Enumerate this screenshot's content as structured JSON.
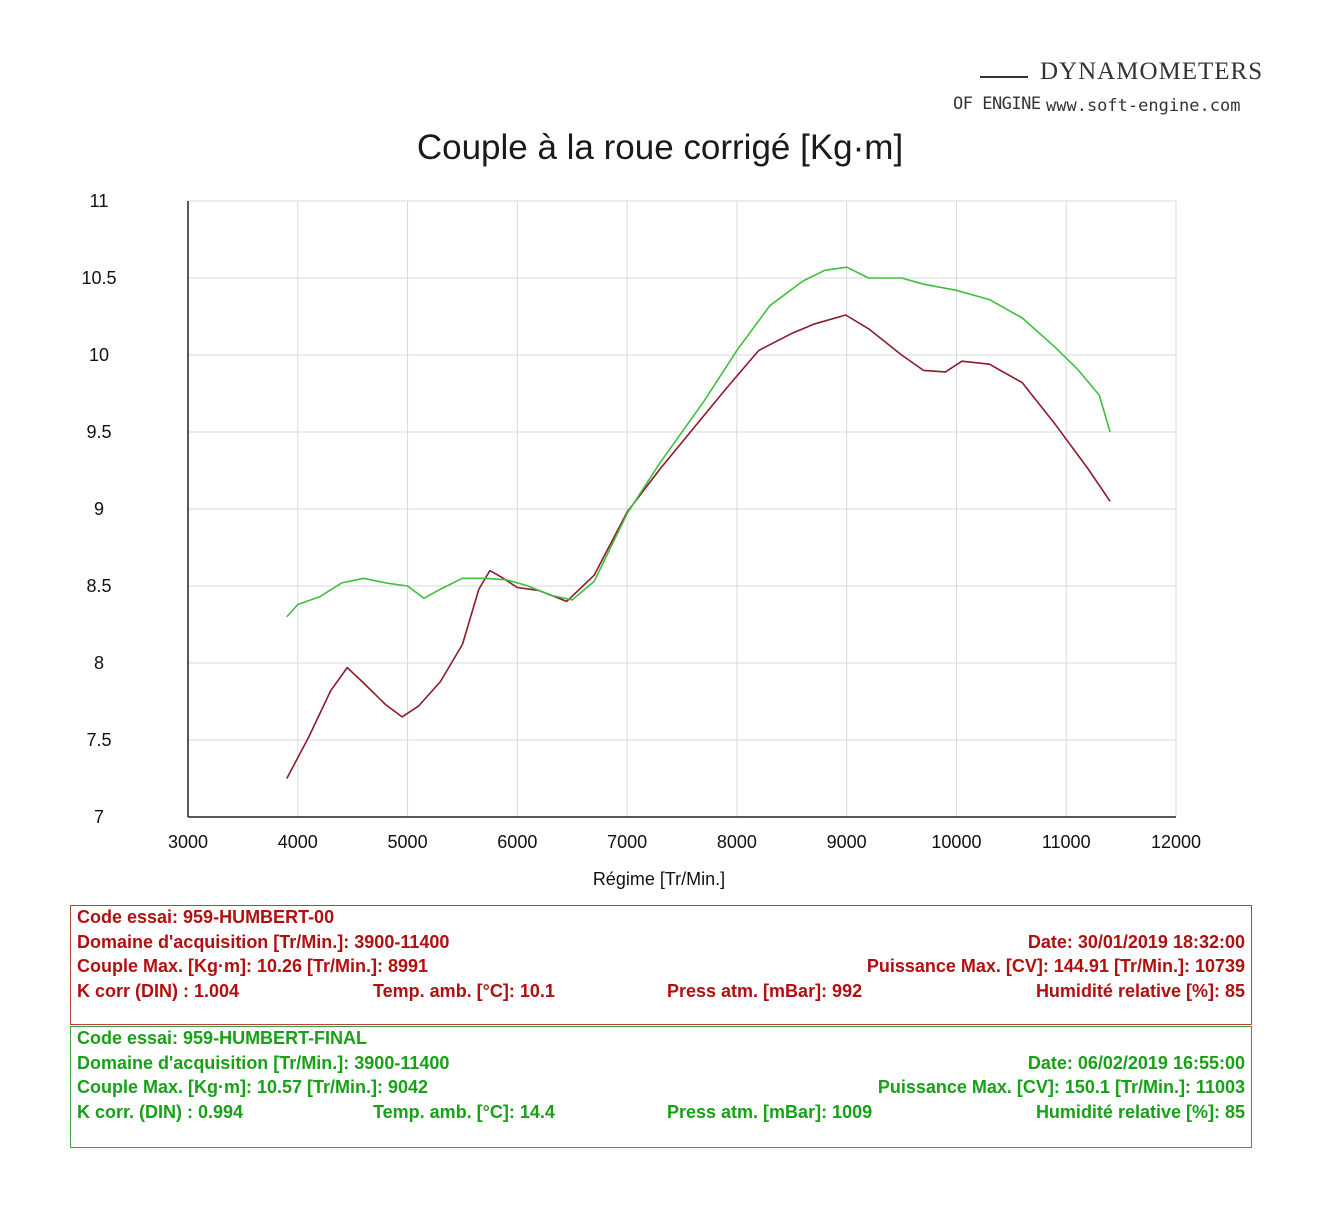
{
  "header": {
    "brand": "DYNAMOMETERS",
    "sub": "OF ENGINE",
    "url": "www.soft-engine.com"
  },
  "chart_data": {
    "type": "line",
    "title": "Couple à la roue corrigé [Kg·m]",
    "xlabel": "Régime [Tr/Min.]",
    "ylabel": "",
    "xlim": [
      3000,
      12000
    ],
    "ylim": [
      7,
      11
    ],
    "x_ticks": [
      "3000",
      "4000",
      "5000",
      "6000",
      "7000",
      "8000",
      "9000",
      "10000",
      "11000",
      "12000"
    ],
    "y_ticks": [
      "7",
      "7.5",
      "8",
      "8.5",
      "9",
      "9.5",
      "10",
      "10.5",
      "11"
    ],
    "grid": true,
    "colors": [
      "#8b1a2a",
      "#3fbf3f"
    ],
    "series": [
      {
        "x": [
          3900,
          4100,
          4300,
          4450,
          4600,
          4800,
          4950,
          5100,
          5300,
          5500,
          5650,
          5750,
          5850,
          6000,
          6200,
          6450,
          6700,
          7000,
          7300,
          7600,
          7900,
          8200,
          8500,
          8700,
          8991,
          9200,
          9500,
          9700,
          9900,
          10050,
          10300,
          10600,
          10900,
          11200,
          11400
        ],
        "y": [
          7.25,
          7.52,
          7.82,
          7.97,
          7.87,
          7.73,
          7.65,
          7.72,
          7.88,
          8.12,
          8.48,
          8.6,
          8.56,
          8.49,
          8.47,
          8.4,
          8.57,
          8.98,
          9.26,
          9.52,
          9.78,
          10.03,
          10.14,
          10.2,
          10.26,
          10.17,
          10.0,
          9.9,
          9.89,
          9.96,
          9.94,
          9.82,
          9.55,
          9.26,
          9.05
        ]
      },
      {
        "x": [
          3900,
          4000,
          4200,
          4400,
          4600,
          4800,
          5000,
          5150,
          5300,
          5500,
          5700,
          5900,
          6100,
          6300,
          6500,
          6700,
          7000,
          7300,
          7700,
          8000,
          8300,
          8600,
          8800,
          9000,
          9200,
          9500,
          9700,
          10000,
          10300,
          10600,
          10900,
          11100,
          11300,
          11400
        ],
        "y": [
          8.3,
          8.38,
          8.43,
          8.52,
          8.55,
          8.52,
          8.5,
          8.42,
          8.48,
          8.55,
          8.55,
          8.54,
          8.5,
          8.44,
          8.41,
          8.53,
          8.97,
          9.3,
          9.7,
          10.03,
          10.32,
          10.48,
          10.55,
          10.57,
          10.5,
          10.5,
          10.46,
          10.42,
          10.36,
          10.24,
          10.05,
          9.91,
          9.74,
          9.5
        ]
      }
    ]
  },
  "test1": {
    "code": "Code essai: 959-HUMBERT-00",
    "domain": "Domaine d'acquisition [Tr/Min.]: 3900-11400",
    "date": "Date: 30/01/2019   18:32:00",
    "couple": "Couple Max. [Kg·m]: 10.26   [Tr/Min.]: 8991",
    "power": "Puissance Max. [CV]: 144.91   [Tr/Min.]: 10739",
    "kcorr": "K corr  (DIN) : 1.004",
    "temp": "Temp. amb. [°C]: 10.1",
    "press": "Press atm. [mBar]: 992",
    "humid": "Humidité relative [%]: 85"
  },
  "test2": {
    "code": "Code essai: 959-HUMBERT-FINAL",
    "domain": "Domaine d'acquisition [Tr/Min.]: 3900-11400",
    "date": "Date: 06/02/2019   16:55:00",
    "couple": "Couple Max. [Kg·m]: 10.57   [Tr/Min.]: 9042",
    "power": "Puissance Max. [CV]: 150.1   [Tr/Min.]: 11003",
    "kcorr": "K corr. (DIN) : 0.994",
    "temp": "Temp. amb. [°C]: 14.4",
    "press": "Press atm. [mBar]: 1009",
    "humid": "Humidité relative [%]: 85"
  }
}
